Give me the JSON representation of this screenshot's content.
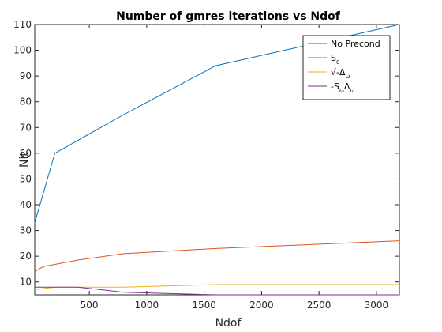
{
  "chart_data": {
    "type": "line",
    "title": "Number of gmres iterations vs Ndof",
    "xlabel": "Ndof",
    "ylabel": "Nit",
    "xlim": [
      25,
      3200
    ],
    "ylim": [
      5,
      110
    ],
    "xticks": [
      500,
      1000,
      1500,
      2000,
      2500,
      3000
    ],
    "yticks": [
      10,
      20,
      30,
      40,
      50,
      60,
      70,
      80,
      90,
      100,
      110
    ],
    "grid": false,
    "legend_position": "top-right",
    "series": [
      {
        "name": "No Precond",
        "legend": {
          "base": "No Precond",
          "sub": ""
        },
        "color": "#0072BD",
        "x": [
          25,
          200,
          800,
          1600,
          3200
        ],
        "y": [
          33,
          60,
          75,
          94,
          110
        ]
      },
      {
        "name": "S0",
        "legend": {
          "base": "S",
          "sub": "0"
        },
        "color": "#D95319",
        "x": [
          25,
          100,
          400,
          800,
          1600,
          3200
        ],
        "y": [
          14,
          16,
          18.5,
          21,
          23,
          26
        ]
      },
      {
        "name": "√-Δω",
        "legend": {
          "base": "√-Δ",
          "sub": "ω"
        },
        "color": "#EDB120",
        "x": [
          25,
          200,
          800,
          1600,
          3200
        ],
        "y": [
          7,
          8,
          8,
          9,
          9
        ]
      },
      {
        "name": "-SωΔω",
        "legend": {
          "base": "-S",
          "sub": "ω",
          "base2": "Δ",
          "sub2": "ω"
        },
        "color": "#7E2F8E",
        "x": [
          25,
          200,
          400,
          800,
          1600,
          3200
        ],
        "y": [
          8,
          8,
          8,
          6,
          5,
          5
        ]
      }
    ]
  }
}
